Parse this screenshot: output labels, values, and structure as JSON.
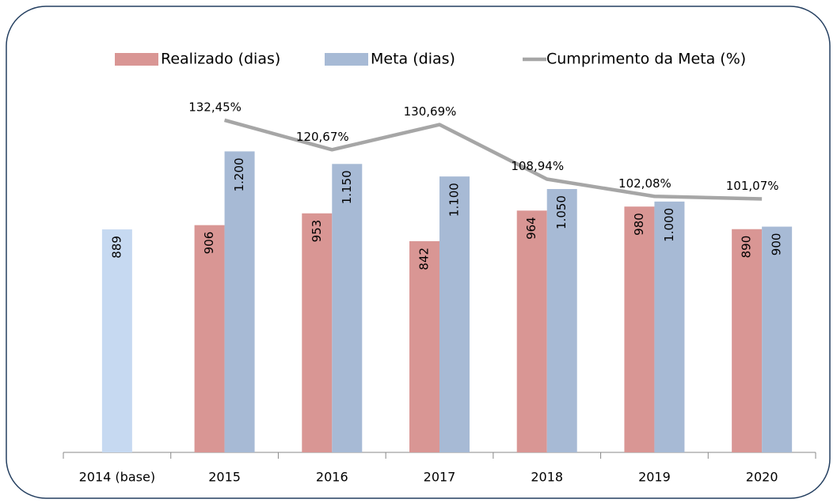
{
  "chart_data": {
    "type": "bar",
    "categories": [
      "2014 (base)",
      "2015",
      "2016",
      "2017",
      "2018",
      "2019",
      "2020"
    ],
    "series": [
      {
        "name": "Realizado (dias)",
        "color": "#d99694",
        "point_colors": [
          "#c6d9f1",
          null,
          null,
          null,
          null,
          null,
          null
        ],
        "values": [
          889,
          906,
          953,
          842,
          964,
          980,
          890
        ]
      },
      {
        "name": "Meta (dias)",
        "color": "#a7bad5",
        "values": [
          null,
          1200,
          1150,
          1100,
          1050,
          1000,
          900
        ],
        "value_labels": [
          null,
          "1.200",
          "1.150",
          "1.100",
          "1.050",
          "1.000",
          "900"
        ]
      },
      {
        "name": "Cumprimento da Meta (%)",
        "type": "line",
        "axis": "y2",
        "color": "#a6a6a6",
        "values": [
          null,
          132.45,
          120.67,
          130.69,
          108.94,
          102.08,
          101.07
        ],
        "value_labels": [
          null,
          "132,45%",
          "120,67%",
          "130,69%",
          "108,94%",
          "102,08%",
          "101,07%"
        ]
      }
    ],
    "ylim": [
      0,
      1400
    ],
    "y2lim": [
      0,
      140
    ],
    "legend": "top"
  }
}
